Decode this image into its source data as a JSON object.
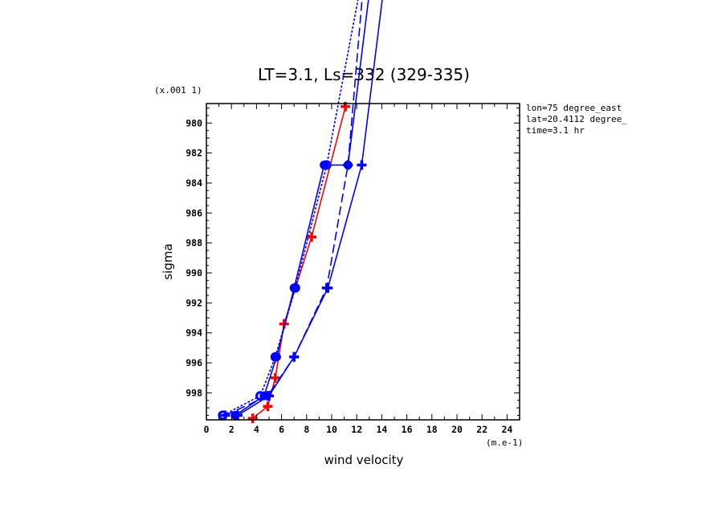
{
  "chart_data": {
    "type": "line",
    "title": "LT=3.1, Ls=332 (329-335)",
    "xlabel": "wind velocity",
    "ylabel": "sigma",
    "x_units": "(m.e-1)",
    "y_scale_note": "(x.001 1)",
    "xlim": [
      0,
      25
    ],
    "ylim": [
      999.8,
      978.7
    ],
    "x_ticks": [
      "0",
      "2",
      "4",
      "6",
      "8",
      "10",
      "12",
      "14",
      "16",
      "18",
      "20",
      "22",
      "24"
    ],
    "y_ticks": [
      "980",
      "982",
      "984",
      "986",
      "988",
      "990",
      "992",
      "994",
      "996",
      "998"
    ],
    "annotations": [
      "lon=75 degree_east",
      "lat=20.4112 degree_",
      "time=3.1 hr"
    ],
    "series": [
      {
        "color": "#ff0000",
        "dash": "solid",
        "marker": "plus",
        "x": [
          3.7,
          4.9,
          5.5,
          6.2,
          8.4,
          11.1
        ],
        "y": [
          999.7,
          998.9,
          997.0,
          993.4,
          987.6,
          978.9
        ]
      },
      {
        "color": "#0000ff",
        "dash": "dotted",
        "marker": "ring",
        "x": [
          1.3,
          4.3,
          5.5,
          7.1,
          9.6,
          12.5
        ],
        "y": [
          999.5,
          998.2,
          995.6,
          991.0,
          982.8,
          970.0
        ]
      },
      {
        "color": "#0000ff",
        "dash": "solid",
        "marker": "circle",
        "x": [
          2.3,
          4.6,
          5.6,
          7.0,
          9.4,
          11.3,
          13.2
        ],
        "y": [
          999.5,
          998.2,
          995.6,
          991.0,
          982.8,
          982.8,
          970.0
        ]
      },
      {
        "color": "#0000ff",
        "dash": "long-dash",
        "marker": "plus",
        "x": [
          1.5,
          4.9,
          7.0,
          9.6,
          11.3,
          12.6
        ],
        "y": [
          999.5,
          998.2,
          995.6,
          991.0,
          982.8,
          970.0
        ]
      },
      {
        "color": "#0000ff",
        "dash": "solid",
        "marker": "plus",
        "x": [
          2.5,
          5.0,
          7.0,
          9.7,
          12.4,
          14.3
        ],
        "y": [
          999.5,
          998.2,
          995.6,
          991.0,
          982.8,
          970.0
        ]
      }
    ]
  }
}
